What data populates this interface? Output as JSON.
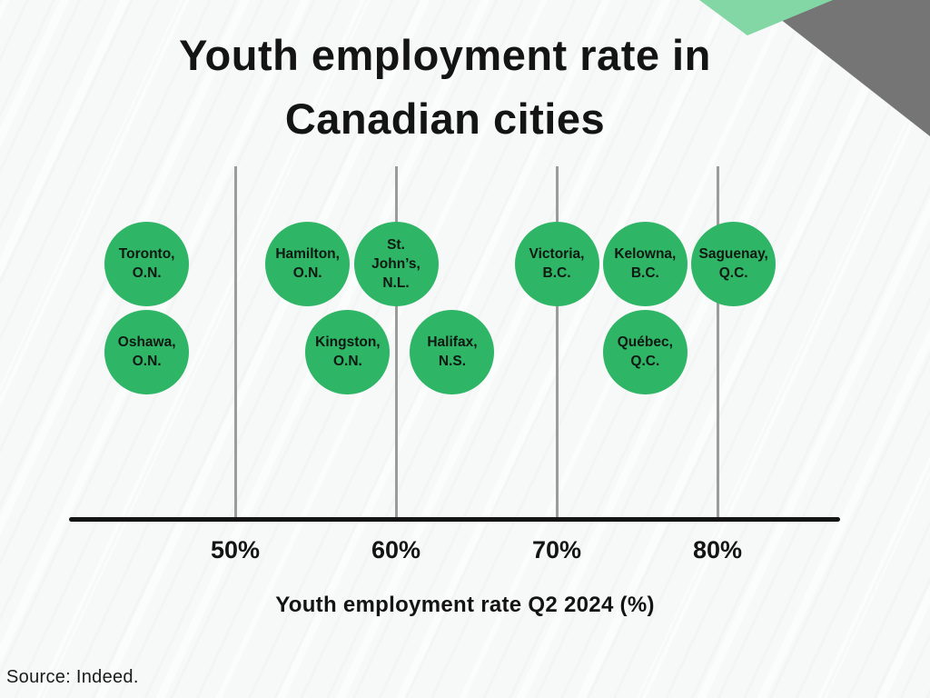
{
  "title": {
    "line1": "Youth employment rate in",
    "line2": "Canadian cities"
  },
  "source": "Source: Indeed.",
  "axis": {
    "label": "Youth employment rate Q2 2024 (%)",
    "ticks": [
      {
        "label": "50%",
        "value": 50
      },
      {
        "label": "60%",
        "value": 60
      },
      {
        "label": "70%",
        "value": 70
      },
      {
        "label": "80%",
        "value": 80
      }
    ]
  },
  "colors": {
    "bubble_green": "#2eb566",
    "corner_mint": "#82d7a5",
    "corner_gray": "#757575",
    "gridline_gray": "#9b9b9b",
    "axis_black": "#141414",
    "background": "#f7f8f8"
  },
  "chart_data": {
    "type": "scatter",
    "title": "Youth employment rate in Canadian cities",
    "xlabel": "Youth employment rate Q2 2024 (%)",
    "xlim": [
      39.5,
      87.5
    ],
    "x_ticks": [
      50,
      60,
      70,
      80
    ],
    "grid": "vertical-only",
    "legend": "none",
    "points": [
      {
        "label": "Toronto, O.N.",
        "lines": [
          "Toronto,",
          "O.N."
        ],
        "value": 44.5,
        "row": 1
      },
      {
        "label": "Oshawa, O.N.",
        "lines": [
          "Oshawa,",
          "O.N."
        ],
        "value": 44.5,
        "row": 2
      },
      {
        "label": "Hamilton, O.N.",
        "lines": [
          "Hamilton,",
          "O.N."
        ],
        "value": 54.5,
        "row": 1
      },
      {
        "label": "Kingston, O.N.",
        "lines": [
          "Kingston,",
          "O.N."
        ],
        "value": 57.0,
        "row": 2
      },
      {
        "label": "St. John’s, N.L.",
        "lines": [
          "St.",
          "John’s,",
          "N.L."
        ],
        "value": 60.0,
        "row": 1
      },
      {
        "label": "Halifax, N.S.",
        "lines": [
          "Halifax,",
          "N.S."
        ],
        "value": 63.5,
        "row": 2
      },
      {
        "label": "Victoria, B.C.",
        "lines": [
          "Victoria,",
          "B.C."
        ],
        "value": 70.0,
        "row": 1
      },
      {
        "label": "Kelowna, B.C.",
        "lines": [
          "Kelowna,",
          "B.C."
        ],
        "value": 75.5,
        "row": 1
      },
      {
        "label": "Québec, Q.C.",
        "lines": [
          "Québec,",
          "Q.C."
        ],
        "value": 75.5,
        "row": 2
      },
      {
        "label": "Saguenay, Q.C.",
        "lines": [
          "Saguenay,",
          "Q.C."
        ],
        "value": 81.0,
        "row": 1
      }
    ]
  }
}
